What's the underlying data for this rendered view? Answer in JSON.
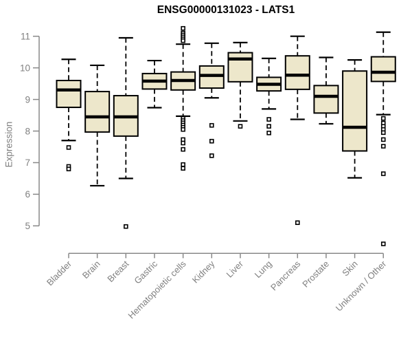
{
  "title": "ENSG00000131023 - LATS1",
  "chart_data": {
    "type": "boxplot",
    "title": "ENSG00000131023 - LATS1",
    "xlabel": "",
    "ylabel": "Expression",
    "ylim": [
      5,
      11
    ],
    "yticks": [
      5,
      6,
      7,
      8,
      9,
      10,
      11
    ],
    "grid": false,
    "categories": [
      "Bladder",
      "Brain",
      "Breast",
      "Gastric",
      "Hematopoietic cells",
      "Kidney",
      "Liver",
      "Lung",
      "Pancreas",
      "Prostate",
      "Skin",
      "Unknown / Other"
    ],
    "boxes": [
      {
        "category": "Bladder",
        "whisker_low": 7.7,
        "q1": 8.75,
        "median": 9.3,
        "q3": 9.6,
        "whisker_high": 10.27,
        "outliers": [
          7.48,
          6.88,
          6.8
        ]
      },
      {
        "category": "Brain",
        "whisker_low": 6.27,
        "q1": 7.97,
        "median": 8.45,
        "q3": 9.25,
        "whisker_high": 10.08,
        "outliers": []
      },
      {
        "category": "Breast",
        "whisker_low": 6.5,
        "q1": 7.84,
        "median": 8.45,
        "q3": 9.12,
        "whisker_high": 10.95,
        "outliers": [
          4.98
        ]
      },
      {
        "category": "Gastric",
        "whisker_low": 8.74,
        "q1": 9.33,
        "median": 9.58,
        "q3": 9.82,
        "whisker_high": 10.23,
        "outliers": []
      },
      {
        "category": "Hematopoietic cells",
        "whisker_low": 8.47,
        "q1": 9.3,
        "median": 9.6,
        "q3": 9.87,
        "whisker_high": 10.75,
        "outliers": [
          11.25,
          11.1,
          11.04,
          10.98,
          10.92,
          10.86,
          8.4,
          8.33,
          8.26,
          8.19,
          8.12,
          8.05,
          7.73,
          7.62,
          7.42,
          6.94,
          6.82
        ]
      },
      {
        "category": "Kidney",
        "whisker_low": 9.05,
        "q1": 9.36,
        "median": 9.76,
        "q3": 10.06,
        "whisker_high": 10.78,
        "outliers": [
          8.18,
          7.68,
          7.22
        ]
      },
      {
        "category": "Liver",
        "whisker_low": 8.32,
        "q1": 9.56,
        "median": 10.28,
        "q3": 10.48,
        "whisker_high": 10.8,
        "outliers": [
          8.15
        ]
      },
      {
        "category": "Lung",
        "whisker_low": 8.7,
        "q1": 9.27,
        "median": 9.48,
        "q3": 9.7,
        "whisker_high": 10.3,
        "outliers": [
          8.37,
          8.15,
          7.94
        ]
      },
      {
        "category": "Pancreas",
        "whisker_low": 8.37,
        "q1": 9.32,
        "median": 9.77,
        "q3": 10.38,
        "whisker_high": 11.0,
        "outliers": [
          5.1
        ]
      },
      {
        "category": "Prostate",
        "whisker_low": 8.23,
        "q1": 8.57,
        "median": 9.1,
        "q3": 9.44,
        "whisker_high": 10.33,
        "outliers": []
      },
      {
        "category": "Skin",
        "whisker_low": 6.52,
        "q1": 7.37,
        "median": 8.12,
        "q3": 9.9,
        "whisker_high": 10.25,
        "outliers": []
      },
      {
        "category": "Unknown / Other",
        "whisker_low": 8.52,
        "q1": 9.57,
        "median": 9.86,
        "q3": 10.35,
        "whisker_high": 11.13,
        "outliers": [
          8.4,
          8.25,
          8.15,
          8.05,
          7.95,
          7.73,
          7.52,
          6.65,
          4.43
        ]
      }
    ]
  },
  "colors": {
    "box_fill": "#EDE7CB",
    "box_stroke": "#000000",
    "median": "#000000",
    "whisker": "#000000",
    "outlier_stroke": "#000000",
    "outlier_fill": "#FFFFFF",
    "axis": "#888888",
    "tick_label": "#808080",
    "title": "#000000",
    "background": "#FFFFFF"
  }
}
